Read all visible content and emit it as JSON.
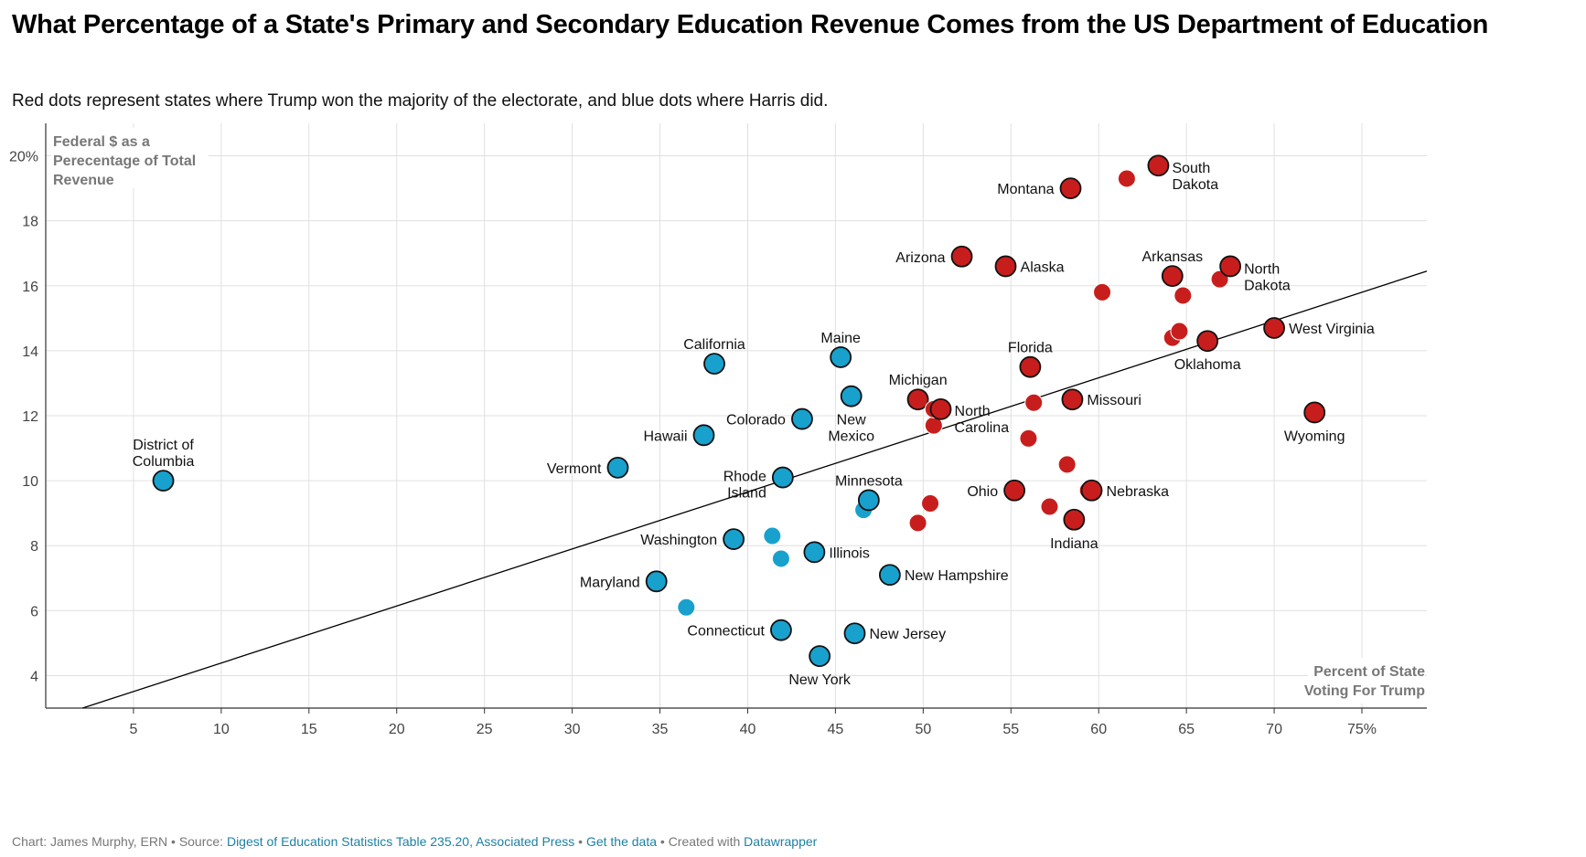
{
  "header": {
    "title": "What Percentage of a State's Primary and Secondary Education Revenue Comes from the US Department of Education",
    "subtitle": "Red dots represent states where Trump won the majority of the electorate, and blue dots where Harris did."
  },
  "colors": {
    "trump": "#c71e1d",
    "harris": "#18a1cd",
    "grid": "#e0e0e0",
    "trendline": "#000000"
  },
  "chart_data": {
    "type": "scatter",
    "title": "What Percentage of a State's Primary and Secondary Education Revenue Comes from the US Department of Education",
    "ylabel_lines": [
      "Federal $ as a",
      "Perecentage of Total",
      "Revenue"
    ],
    "xlabel_lines": [
      "Percent of State",
      "Voting For Trump"
    ],
    "xlim": [
      0,
      78.7
    ],
    "ylim": [
      3.0,
      21.0
    ],
    "xticks": [
      5,
      10,
      15,
      20,
      25,
      30,
      35,
      40,
      45,
      50,
      55,
      60,
      65,
      70,
      75
    ],
    "xtick_labels": [
      "5",
      "10",
      "15",
      "20",
      "25",
      "30",
      "35",
      "40",
      "45",
      "50",
      "55",
      "60",
      "65",
      "70",
      "75%"
    ],
    "yticks": [
      4,
      6,
      8,
      10,
      12,
      14,
      16,
      18,
      20
    ],
    "ytick_labels": [
      "4",
      "6",
      "8",
      "10",
      "12",
      "14",
      "16",
      "18",
      "20%"
    ],
    "grid": true,
    "trendline": [
      [
        2.1,
        3.0
      ],
      [
        78.7,
        16.45
      ]
    ],
    "series": [
      {
        "name": "Harris",
        "color": "#18a1cd",
        "points": [
          {
            "label": "District of Columbia",
            "lines": [
              "District of",
              "Columbia"
            ],
            "x": 6.7,
            "y": 10.0,
            "lp": "above"
          },
          {
            "label": "Vermont",
            "lines": [
              "Vermont"
            ],
            "x": 32.6,
            "y": 10.4,
            "lp": "left"
          },
          {
            "label": "Maryland",
            "lines": [
              "Maryland"
            ],
            "x": 34.8,
            "y": 6.9,
            "lp": "left"
          },
          {
            "label": "",
            "lines": [],
            "x": 36.5,
            "y": 6.1,
            "lp": "none"
          },
          {
            "label": "Hawaii",
            "lines": [
              "Hawaii"
            ],
            "x": 37.5,
            "y": 11.4,
            "lp": "left"
          },
          {
            "label": "California",
            "lines": [
              "California"
            ],
            "x": 38.1,
            "y": 13.6,
            "lp": "above"
          },
          {
            "label": "Washington",
            "lines": [
              "Washington"
            ],
            "x": 39.2,
            "y": 8.2,
            "lp": "left"
          },
          {
            "label": "",
            "lines": [],
            "x": 41.4,
            "y": 8.3,
            "lp": "none"
          },
          {
            "label": "Connecticut",
            "lines": [
              "Connecticut"
            ],
            "x": 41.9,
            "y": 5.4,
            "lp": "left"
          },
          {
            "label": "",
            "lines": [],
            "x": 41.9,
            "y": 7.6,
            "lp": "none"
          },
          {
            "label": "Rhode Island",
            "lines": [
              "Rhode",
              "Island"
            ],
            "x": 42.0,
            "y": 10.1,
            "lp": "ri"
          },
          {
            "label": "Colorado",
            "lines": [
              "Colorado"
            ],
            "x": 43.1,
            "y": 11.9,
            "lp": "left"
          },
          {
            "label": "Illinois",
            "lines": [
              "Illinois"
            ],
            "x": 43.8,
            "y": 7.8,
            "lp": "right"
          },
          {
            "label": "New York",
            "lines": [
              "New York"
            ],
            "x": 44.1,
            "y": 4.6,
            "lp": "below"
          },
          {
            "label": "Maine",
            "lines": [
              "Maine"
            ],
            "x": 45.3,
            "y": 13.8,
            "lp": "above"
          },
          {
            "label": "New Mexico",
            "lines": [
              "New",
              "Mexico"
            ],
            "x": 45.9,
            "y": 12.6,
            "lp": "below"
          },
          {
            "label": "New Jersey",
            "lines": [
              "New Jersey"
            ],
            "x": 46.1,
            "y": 5.3,
            "lp": "right"
          },
          {
            "label": "",
            "lines": [],
            "x": 46.6,
            "y": 9.1,
            "lp": "none"
          },
          {
            "label": "Minnesota",
            "lines": [
              "Minnesota"
            ],
            "x": 46.9,
            "y": 9.4,
            "lp": "above"
          },
          {
            "label": "New Hampshire",
            "lines": [
              "New Hampshire"
            ],
            "x": 48.1,
            "y": 7.1,
            "lp": "right"
          }
        ]
      },
      {
        "name": "Trump",
        "color": "#c71e1d",
        "points": [
          {
            "label": "",
            "lines": [],
            "x": 49.7,
            "y": 8.7,
            "lp": "none"
          },
          {
            "label": "Michigan",
            "lines": [
              "Michigan"
            ],
            "x": 49.7,
            "y": 12.5,
            "lp": "above"
          },
          {
            "label": "",
            "lines": [],
            "x": 50.4,
            "y": 9.3,
            "lp": "none"
          },
          {
            "label": "",
            "lines": [],
            "x": 50.6,
            "y": 11.7,
            "lp": "none"
          },
          {
            "label": "",
            "lines": [],
            "x": 50.6,
            "y": 12.2,
            "lp": "none"
          },
          {
            "label": "North Carolina",
            "lines": [
              "North",
              "Carolina"
            ],
            "x": 51.0,
            "y": 12.2,
            "lp": "nc"
          },
          {
            "label": "Arizona",
            "lines": [
              "Arizona"
            ],
            "x": 52.2,
            "y": 16.9,
            "lp": "left"
          },
          {
            "label": "Alaska",
            "lines": [
              "Alaska"
            ],
            "x": 54.7,
            "y": 16.6,
            "lp": "right"
          },
          {
            "label": "Ohio",
            "lines": [
              "Ohio"
            ],
            "x": 55.2,
            "y": 9.7,
            "lp": "left"
          },
          {
            "label": "",
            "lines": [],
            "x": 56.0,
            "y": 11.3,
            "lp": "none"
          },
          {
            "label": "Florida",
            "lines": [
              "Florida"
            ],
            "x": 56.1,
            "y": 13.5,
            "lp": "above"
          },
          {
            "label": "",
            "lines": [],
            "x": 56.3,
            "y": 12.4,
            "lp": "none"
          },
          {
            "label": "",
            "lines": [],
            "x": 57.2,
            "y": 9.2,
            "lp": "none"
          },
          {
            "label": "",
            "lines": [],
            "x": 58.2,
            "y": 10.5,
            "lp": "none"
          },
          {
            "label": "Montana",
            "lines": [
              "Montana"
            ],
            "x": 58.4,
            "y": 19.0,
            "lp": "left"
          },
          {
            "label": "Missouri",
            "lines": [
              "Missouri"
            ],
            "x": 58.5,
            "y": 12.5,
            "lp": "right"
          },
          {
            "label": "Indiana",
            "lines": [
              "Indiana"
            ],
            "x": 58.6,
            "y": 8.8,
            "lp": "below"
          },
          {
            "label": "",
            "lines": [],
            "x": 59.4,
            "y": 9.7,
            "lp": "none"
          },
          {
            "label": "Nebraska",
            "lines": [
              "Nebraska"
            ],
            "x": 59.6,
            "y": 9.7,
            "lp": "right"
          },
          {
            "label": "",
            "lines": [],
            "x": 60.2,
            "y": 15.8,
            "lp": "none"
          },
          {
            "label": "",
            "lines": [],
            "x": 61.6,
            "y": 19.3,
            "lp": "none"
          },
          {
            "label": "South Dakota",
            "lines": [
              "South",
              "Dakota"
            ],
            "x": 63.4,
            "y": 19.7,
            "lp": "rightstack"
          },
          {
            "label": "",
            "lines": [],
            "x": 64.2,
            "y": 14.4,
            "lp": "none"
          },
          {
            "label": "Arkansas",
            "lines": [
              "Arkansas"
            ],
            "x": 64.2,
            "y": 16.3,
            "lp": "above"
          },
          {
            "label": "",
            "lines": [],
            "x": 64.6,
            "y": 14.6,
            "lp": "none"
          },
          {
            "label": "",
            "lines": [],
            "x": 64.8,
            "y": 15.7,
            "lp": "none"
          },
          {
            "label": "Oklahoma",
            "lines": [
              "Oklahoma"
            ],
            "x": 66.2,
            "y": 14.3,
            "lp": "below"
          },
          {
            "label": "",
            "lines": [],
            "x": 66.9,
            "y": 16.2,
            "lp": "none"
          },
          {
            "label": "North Dakota",
            "lines": [
              "North",
              "Dakota"
            ],
            "x": 67.5,
            "y": 16.6,
            "lp": "rightstack"
          },
          {
            "label": "West Virginia",
            "lines": [
              "West Virginia"
            ],
            "x": 70.0,
            "y": 14.7,
            "lp": "right"
          },
          {
            "label": "Wyoming",
            "lines": [
              "Wyoming"
            ],
            "x": 72.3,
            "y": 12.1,
            "lp": "below"
          }
        ]
      }
    ]
  },
  "footer": {
    "credit": "Chart: James Murphy, ERN",
    "sep": " • ",
    "source_prefix": "Source: ",
    "source": "Digest of Education Statistics Table 235.20, Associated Press",
    "get_data": "Get the data",
    "created": "Created with ",
    "tool": "Datawrapper"
  }
}
